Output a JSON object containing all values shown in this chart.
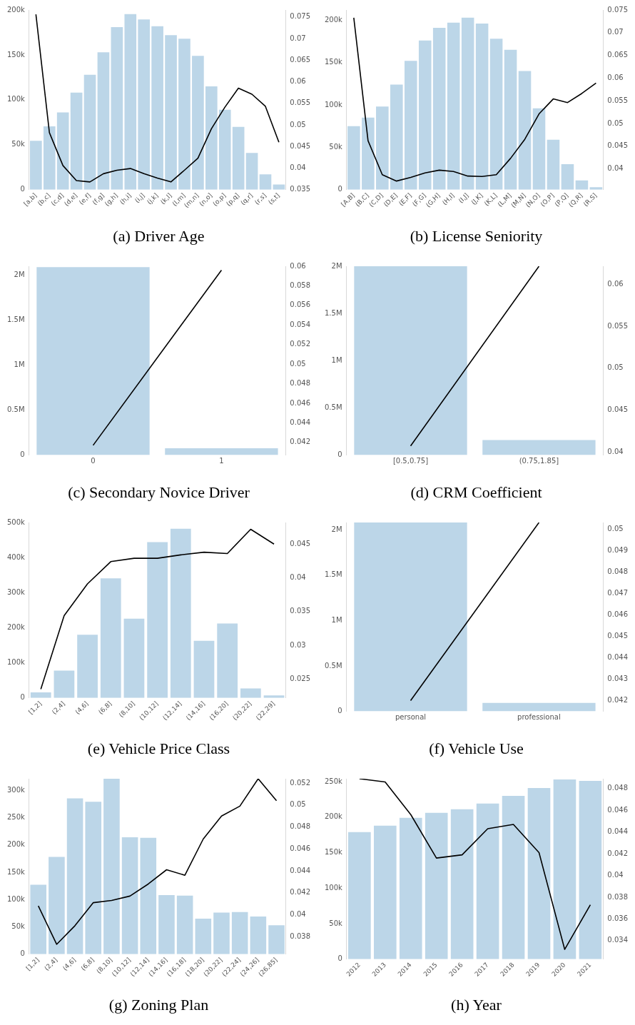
{
  "chart_data": [
    {
      "type": "bar",
      "title": "(a) Driver Age",
      "marker": "none",
      "categories": [
        "[a,b]",
        "(b,c]",
        "(c,d]",
        "(d,e]",
        "(e,f]",
        "(f,g]",
        "(g,h]",
        "(h,i]",
        "(i,j]",
        "(j,k]",
        "(k,l]",
        "(l,m]",
        "(m,n]",
        "(n,o]",
        "(o,p]",
        "(p,q]",
        "(q,r]",
        "(r,s]",
        "(s,t]"
      ],
      "ylim": [
        0,
        200000
      ],
      "yticks": [
        {
          "value": 0,
          "label": "0"
        },
        {
          "value": 50000,
          "label": "50k"
        },
        {
          "value": 100000,
          "label": "100k"
        },
        {
          "value": 150000,
          "label": "150k"
        },
        {
          "value": 200000,
          "label": "200k"
        }
      ],
      "y2lim": [
        0.035,
        0.0766
      ],
      "y2ticks": [
        0.035,
        0.04,
        0.045,
        0.05,
        0.055,
        0.06,
        0.065,
        0.07,
        0.075
      ],
      "series": [
        {
          "color": "#bcd6e8",
          "values": [
            54500,
            70500,
            86000,
            108000,
            128000,
            153000,
            181000,
            195500,
            189500,
            182000,
            172000,
            168000,
            149000,
            115000,
            89000,
            70000,
            41000,
            17000,
            5700
          ]
        },
        {
          "type": "line",
          "axis": "y2",
          "color": "#000000",
          "values": [
            0.0756,
            0.0482,
            0.0406,
            0.0371,
            0.0368,
            0.0387,
            0.0395,
            0.0399,
            0.0387,
            0.0377,
            0.0368,
            0.0395,
            0.0423,
            0.0491,
            0.0541,
            0.0585,
            0.0571,
            0.0543,
            0.046
          ]
        }
      ]
    },
    {
      "type": "bar",
      "title": "(b) License Seniority",
      "marker": "none",
      "categories": [
        "[A,B]",
        "(B,C]",
        "(C,D]",
        "(D,E]",
        "(E,F]",
        "(F,G]",
        "(G,H]",
        "(H,I]",
        "(I,J]",
        "(J,K]",
        "(K,L]",
        "(L,M]",
        "(M,N]",
        "(N,O]",
        "(O,P]",
        "(P,Q]",
        "(Q,R]",
        "(R,S]"
      ],
      "ylim": [
        0,
        212000
      ],
      "yticks": [
        {
          "value": 0,
          "label": "0"
        },
        {
          "value": 50000,
          "label": "50k"
        },
        {
          "value": 100000,
          "label": "100k"
        },
        {
          "value": 150000,
          "label": "150k"
        },
        {
          "value": 200000,
          "label": "200k"
        }
      ],
      "y2lim": [
        0.0354,
        0.075
      ],
      "y2ticks": [
        0.04,
        0.045,
        0.05,
        0.055,
        0.06,
        0.065,
        0.07,
        0.075
      ],
      "series": [
        {
          "color": "#bcd6e8",
          "values": [
            75000,
            85000,
            98000,
            124000,
            152000,
            176000,
            191000,
            197000,
            203000,
            196000,
            178000,
            165000,
            140000,
            96000,
            59000,
            30000,
            11000,
            3000
          ]
        },
        {
          "type": "line",
          "axis": "y2",
          "color": "#000000",
          "values": [
            0.0733,
            0.0462,
            0.0387,
            0.0373,
            0.0381,
            0.0391,
            0.0397,
            0.0394,
            0.0384,
            0.0383,
            0.0387,
            0.0423,
            0.0465,
            0.0521,
            0.0554,
            0.0546,
            0.0566,
            0.0589
          ]
        }
      ]
    },
    {
      "type": "bar",
      "title": "(c) Secondary Novice Driver",
      "marker": "none",
      "categories": [
        "0",
        "1"
      ],
      "ylim": [
        0,
        2100000
      ],
      "yticks": [
        {
          "value": 0,
          "label": "0"
        },
        {
          "value": 500000,
          "label": "0.5M"
        },
        {
          "value": 1000000,
          "label": "1M"
        },
        {
          "value": 1500000,
          "label": "1.5M"
        },
        {
          "value": 2000000,
          "label": "2M"
        }
      ],
      "y2lim": [
        0.0407,
        0.06
      ],
      "y2ticks": [
        0.042,
        0.044,
        0.046,
        0.048,
        0.05,
        0.052,
        0.054,
        0.056,
        0.058,
        0.06
      ],
      "series": [
        {
          "color": "#bcd6e8",
          "values": [
            2090000,
            77000
          ]
        },
        {
          "type": "line",
          "axis": "y2",
          "color": "#000000",
          "values": [
            0.0417,
            0.0596
          ]
        }
      ]
    },
    {
      "type": "bar",
      "title": "(d) CRM Coefficient",
      "marker": "none",
      "categories": [
        "[0.5,0.75]",
        "(0.75,1.85]"
      ],
      "ylim": [
        0,
        2000000
      ],
      "yticks": [
        {
          "value": 0,
          "label": "0"
        },
        {
          "value": 500000,
          "label": "0.5M"
        },
        {
          "value": 1000000,
          "label": "1M"
        },
        {
          "value": 1500000,
          "label": "1.5M"
        },
        {
          "value": 2000000,
          "label": "2M"
        }
      ],
      "y2lim": [
        0.0396,
        0.0622
      ],
      "y2ticks": [
        0.04,
        0.045,
        0.05,
        0.055,
        0.06
      ],
      "series": [
        {
          "color": "#bcd6e8",
          "values": [
            2000000,
            160000
          ]
        },
        {
          "type": "line",
          "axis": "y2",
          "color": "#000000",
          "values": [
            0.0407,
            0.0622
          ]
        }
      ]
    },
    {
      "type": "bar",
      "title": "(e) Vehicle Price Class",
      "marker": "none",
      "categories": [
        "[1,2]",
        "(2,4]",
        "(4,6]",
        "(6,8]",
        "(8,10]",
        "(10,12]",
        "(12,14]",
        "(14,16]",
        "(16,20]",
        "(20,22]",
        "(22,29]"
      ],
      "ylim": [
        0,
        500000
      ],
      "yticks": [
        {
          "value": 0,
          "label": "0"
        },
        {
          "value": 100000,
          "label": "100k"
        },
        {
          "value": 200000,
          "label": "200k"
        },
        {
          "value": 300000,
          "label": "300k"
        },
        {
          "value": 400000,
          "label": "400k"
        },
        {
          "value": 500000,
          "label": "500k"
        }
      ],
      "y2lim": [
        0.0222,
        0.0482
      ],
      "y2ticks": [
        0.025,
        0.03,
        0.035,
        0.04,
        0.045
      ],
      "series": [
        {
          "color": "#bcd6e8",
          "values": [
            16000,
            78000,
            180000,
            341000,
            226000,
            444000,
            482000,
            163000,
            212000,
            27000,
            7000
          ]
        },
        {
          "type": "line",
          "axis": "y2",
          "color": "#000000",
          "values": [
            0.0235,
            0.0344,
            0.0391,
            0.0424,
            0.0429,
            0.0429,
            0.0434,
            0.0438,
            0.0436,
            0.0472,
            0.045
          ]
        }
      ]
    },
    {
      "type": "bar",
      "title": "(f) Vehicle Use",
      "marker": "none",
      "categories": [
        "personal",
        "professional"
      ],
      "ylim": [
        0,
        2080000
      ],
      "yticks": [
        {
          "value": 0,
          "label": "0"
        },
        {
          "value": 500000,
          "label": "0.5M"
        },
        {
          "value": 1000000,
          "label": "1M"
        },
        {
          "value": 1500000,
          "label": "1.5M"
        },
        {
          "value": 2000000,
          "label": "2M"
        }
      ],
      "y2lim": [
        0.0415,
        0.0503
      ],
      "y2ticks": [
        0.042,
        0.043,
        0.044,
        0.045,
        0.046,
        0.047,
        0.048,
        0.049,
        0.05
      ],
      "series": [
        {
          "color": "#bcd6e8",
          "values": [
            2080000,
            94000
          ]
        },
        {
          "type": "line",
          "axis": "y2",
          "color": "#000000",
          "values": [
            0.042,
            0.0503
          ]
        }
      ]
    },
    {
      "type": "bar",
      "title": "(g) Zoning Plan",
      "marker": "none",
      "categories": [
        "[1,2]",
        "(2,4]",
        "(4,6]",
        "(6,8]",
        "(8,10]",
        "(10,12]",
        "(12,14]",
        "(14,16]",
        "(16,18]",
        "(18,20]",
        "(20,22]",
        "(22,24]",
        "(24,26]",
        "(26,85]"
      ],
      "ylim": [
        0,
        321000
      ],
      "yticks": [
        {
          "value": 0,
          "label": "0"
        },
        {
          "value": 50000,
          "label": "50k"
        },
        {
          "value": 100000,
          "label": "100k"
        },
        {
          "value": 150000,
          "label": "150k"
        },
        {
          "value": 200000,
          "label": "200k"
        },
        {
          "value": 250000,
          "label": "250k"
        },
        {
          "value": 300000,
          "label": "300k"
        }
      ],
      "y2lim": [
        0.0364,
        0.0524
      ],
      "y2ticks": [
        0.038,
        0.04,
        0.042,
        0.044,
        0.046,
        0.048,
        0.05,
        0.052
      ],
      "series": [
        {
          "color": "#bcd6e8",
          "values": [
            127000,
            178000,
            285000,
            279000,
            321000,
            214000,
            213000,
            108000,
            107000,
            65000,
            76000,
            77000,
            69000,
            53000
          ]
        },
        {
          "type": "line",
          "axis": "y2",
          "color": "#000000",
          "values": [
            0.0408,
            0.0373,
            0.039,
            0.0411,
            0.0413,
            0.0417,
            0.0428,
            0.0441,
            0.0436,
            0.0469,
            0.049,
            0.0499,
            0.0524,
            0.0504
          ]
        }
      ]
    },
    {
      "type": "bar",
      "title": "(h) Year",
      "marker": "none",
      "categories": [
        "2012",
        "2013",
        "2014",
        "2015",
        "2016",
        "2017",
        "2018",
        "2019",
        "2020",
        "2021"
      ],
      "ylim": [
        0,
        254000
      ],
      "yticks": [
        {
          "value": 0,
          "label": "0"
        },
        {
          "value": 50000,
          "label": "50k"
        },
        {
          "value": 100000,
          "label": "100k"
        },
        {
          "value": 150000,
          "label": "150k"
        },
        {
          "value": 200000,
          "label": "200k"
        },
        {
          "value": 250000,
          "label": "250k"
        }
      ],
      "y2lim": [
        0.0323,
        0.0489
      ],
      "y2ticks": [
        0.034,
        0.036,
        0.038,
        0.04,
        0.042,
        0.044,
        0.046,
        0.048
      ],
      "series": [
        {
          "color": "#bcd6e8",
          "values": [
            179000,
            188000,
            199000,
            206000,
            211000,
            219000,
            230000,
            241000,
            253000,
            251000
          ]
        },
        {
          "type": "line",
          "axis": "y2",
          "color": "#000000",
          "values": [
            0.0489,
            0.0486,
            0.0456,
            0.0416,
            0.0419,
            0.0443,
            0.0447,
            0.0421,
            0.0332,
            0.0373
          ]
        }
      ]
    }
  ]
}
